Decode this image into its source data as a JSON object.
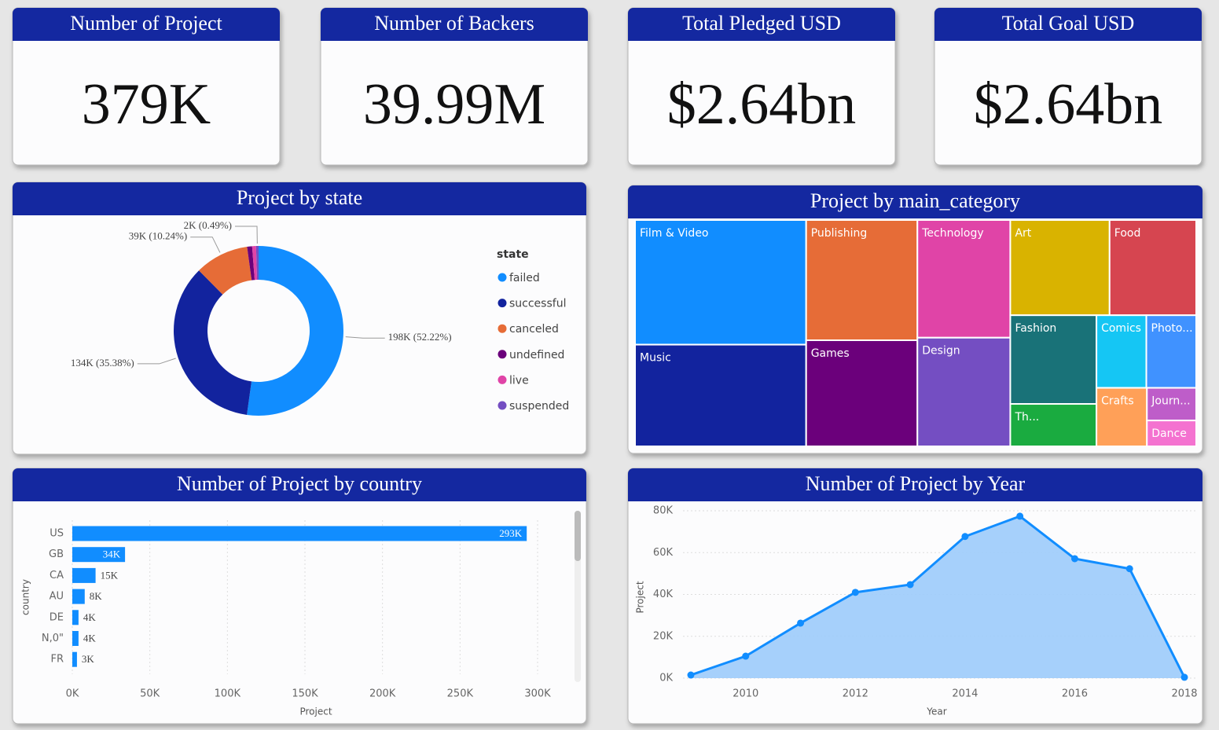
{
  "kpis": [
    {
      "title": "Number of Project",
      "value": "379K"
    },
    {
      "title": "Number of Backers",
      "value": "39.99M"
    },
    {
      "title": "Total Pledged USD",
      "value": "$2.64bn"
    },
    {
      "title": "Total Goal USD",
      "value": "$2.64bn"
    }
  ],
  "chart_data": [
    {
      "type": "donut",
      "title": "Project by state",
      "legend_title": "state",
      "categories": [
        "failed",
        "successful",
        "canceled",
        "undefined",
        "live",
        "suspended"
      ],
      "values": [
        197.7,
        134.0,
        38.8,
        3.6,
        2.8,
        1.8
      ],
      "value_labels": [
        "198K (52.22%)",
        "134K (35.38%)",
        "39K (10.24%)",
        null,
        null,
        "2K (0.49%)"
      ],
      "colors": [
        "#118dff",
        "#12239e",
        "#e66c37",
        "#6b007b",
        "#e044a7",
        "#744ec2"
      ]
    },
    {
      "type": "treemap",
      "title": "Project by main_category",
      "categories": [
        "Film & Video",
        "Music",
        "Publishing",
        "Games",
        "Technology",
        "Design",
        "Art",
        "Food",
        "Fashion",
        "Th...",
        "Comics",
        "Photo...",
        "Crafts",
        "Journ...",
        "Dance"
      ],
      "values": [
        63.6,
        51.9,
        39.9,
        35.2,
        32.6,
        30.1,
        28.2,
        24.6,
        22.8,
        10.9,
        10.8,
        10.8,
        8.8,
        4.8,
        3.8
      ],
      "colors": [
        "#118dff",
        "#12239e",
        "#e66c37",
        "#6b007b",
        "#e044a7",
        "#744ec2",
        "#d9b300",
        "#d64550",
        "#197278",
        "#1aab40",
        "#15c6f4",
        "#4092ff",
        "#ffa058",
        "#be5dc9",
        "#f472d0"
      ]
    },
    {
      "type": "hbar",
      "title": "Number of Project by country",
      "x_label": "Project",
      "y_label": "country",
      "categories": [
        "US",
        "GB",
        "CA",
        "AU",
        "DE",
        "N,0\"",
        "FR"
      ],
      "values": [
        293,
        34,
        15,
        8,
        4,
        4,
        3
      ],
      "value_labels": [
        "293K",
        "34K",
        "15K",
        "8K",
        "4K",
        "4K",
        "3K"
      ],
      "color": "#118dff",
      "xlim": [
        0,
        300
      ],
      "xticks": [
        {
          "value": 0,
          "label": "0K"
        },
        {
          "value": 50,
          "label": "50K"
        },
        {
          "value": 100,
          "label": "100K"
        },
        {
          "value": 150,
          "label": "150K"
        },
        {
          "value": 200,
          "label": "200K"
        },
        {
          "value": 250,
          "label": "250K"
        },
        {
          "value": 300,
          "label": "300K"
        }
      ],
      "grid": true
    },
    {
      "type": "area",
      "title": "Number of Project by Year",
      "x_label": "Year",
      "y_label": "Project",
      "x": [
        2009,
        2010,
        2011,
        2012,
        2013,
        2014,
        2015,
        2016,
        2017,
        2018
      ],
      "values": [
        1.5,
        10.5,
        26.3,
        41,
        44.7,
        67.7,
        77.4,
        57.1,
        52.3,
        0.4
      ],
      "color": "#118dff",
      "xlim": [
        2009,
        2018
      ],
      "xticks": [
        2010,
        2012,
        2014,
        2016,
        2018
      ],
      "ylim": [
        0,
        80
      ],
      "yticks": [
        {
          "value": 0,
          "label": "0K"
        },
        {
          "value": 20,
          "label": "20K"
        },
        {
          "value": 40,
          "label": "40K"
        },
        {
          "value": 60,
          "label": "60K"
        },
        {
          "value": 80,
          "label": "80K"
        }
      ],
      "grid": true
    }
  ]
}
